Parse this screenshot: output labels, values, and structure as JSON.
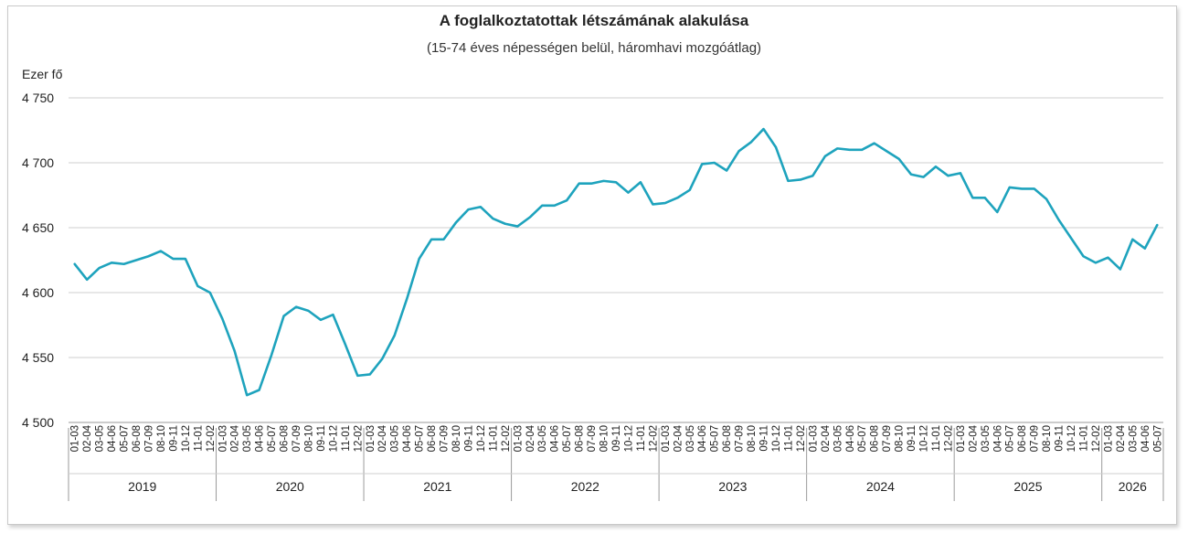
{
  "chart_data": {
    "type": "line",
    "title": "A foglalkoztatottak létszámának alakulása",
    "subtitle": "(15-74 éves népességen belül, háromhavi mozgóátlag)",
    "ylabel": "Ezer fő",
    "ylim": [
      4500,
      4750
    ],
    "yticks": [
      4500,
      4550,
      4600,
      4650,
      4700,
      4750
    ],
    "ytick_labels": [
      "4 500",
      "4 550",
      "4 600",
      "4 650",
      "4 700",
      "4 750"
    ],
    "grid": true,
    "line_color": "#1ea3bd",
    "years": [
      {
        "label": "2019",
        "count": 12
      },
      {
        "label": "2020",
        "count": 12
      },
      {
        "label": "2021",
        "count": 12
      },
      {
        "label": "2022",
        "count": 12
      },
      {
        "label": "2023",
        "count": 12
      },
      {
        "label": "2024",
        "count": 12
      },
      {
        "label": "2025",
        "count": 12
      },
      {
        "label": "2026",
        "count": 5
      }
    ],
    "x": [
      "01-03",
      "02-04",
      "03-05",
      "04-06",
      "05-07",
      "06-08",
      "07-09",
      "08-10",
      "09-11",
      "10-12",
      "11-01",
      "12-02",
      "01-03",
      "02-04",
      "03-05",
      "04-06",
      "05-07",
      "06-08",
      "07-09",
      "08-10",
      "09-11",
      "10-12",
      "11-01",
      "12-02",
      "01-03",
      "02-04",
      "03-05",
      "04-06",
      "05-07",
      "06-08",
      "07-09",
      "08-10",
      "09-11",
      "10-12",
      "11-01",
      "12-02",
      "01-03",
      "02-04",
      "03-05",
      "04-06",
      "05-07",
      "06-08",
      "07-09",
      "08-10",
      "09-11",
      "10-12",
      "11-01",
      "12-02",
      "01-03",
      "02-04",
      "03-05",
      "04-06",
      "05-07",
      "06-08",
      "07-09",
      "08-10",
      "09-11",
      "10-12",
      "11-01",
      "12-02",
      "01-03",
      "02-04",
      "03-05",
      "04-06",
      "05-07",
      "06-08",
      "07-09",
      "08-10",
      "09-11",
      "10-12",
      "11-01",
      "12-02",
      "01-03",
      "02-04",
      "03-05",
      "04-06",
      "05-07",
      "06-08",
      "07-09",
      "08-10",
      "09-11",
      "10-12",
      "11-01",
      "12-02",
      "01-03",
      "02-04",
      "03-05",
      "04-06",
      "05-07"
    ],
    "series": [
      {
        "values": [
          4622,
          4610,
          4619,
          4623,
          4622,
          4625,
          4628,
          4632,
          4626,
          4626,
          4605,
          4600,
          4580,
          4555,
          4521,
          4525,
          4552,
          4582,
          4589,
          4586,
          4579,
          4583,
          4560,
          4536,
          4537,
          4549,
          4567,
          4595,
          4626,
          4641,
          4641,
          4654,
          4664,
          4666,
          4657,
          4653,
          4651,
          4658,
          4667,
          4667,
          4671,
          4684,
          4684,
          4686,
          4685,
          4677,
          4685,
          4668,
          4669,
          4673,
          4679,
          4699,
          4700,
          4694,
          4709,
          4716,
          4726,
          4712,
          4686,
          4687,
          4690,
          4705,
          4711,
          4710,
          4710,
          4715,
          4709,
          4703,
          4691,
          4689,
          4697,
          4690,
          4692,
          4673,
          4673,
          4662,
          4681,
          4680,
          4680,
          4672,
          4656,
          4642,
          4628,
          4623,
          4627,
          4618,
          4641,
          4634,
          4652
        ]
      }
    ]
  }
}
